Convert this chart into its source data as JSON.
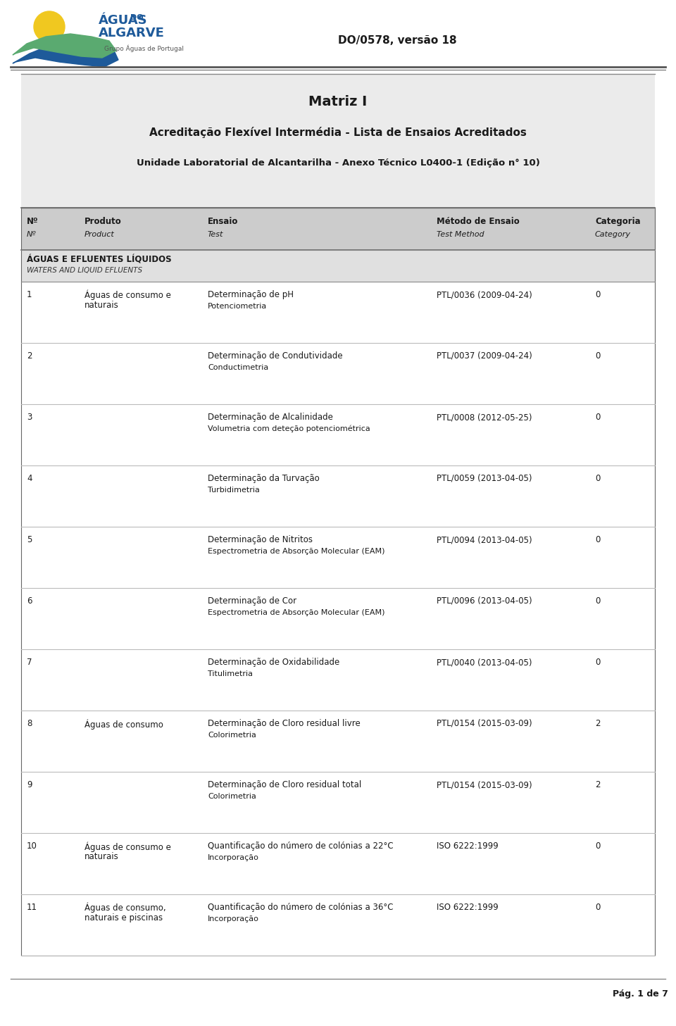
{
  "page_title": "DO/0578, versão 18",
  "doc_title1": "Matriz I",
  "doc_title2": "Acreditação Flexível Intermédia - Lista de Ensaios Acreditados",
  "doc_title3": "Unidade Laboratorial de Alcantarilha - Anexo Técnico L0400-1 (Edição n° 10)",
  "col_headers_bold": [
    "Nº",
    "Produto",
    "Ensaio",
    "Método de Ensaio",
    "Categoria"
  ],
  "col_headers_italic": [
    "Nº",
    "Product",
    "Test",
    "Test Method",
    "Category"
  ],
  "section_header_bold": "ÁGUAS E EFLUENTES LÍQUIDOS",
  "section_header_italic": "WATERS AND LIQUID EFLUENTS",
  "rows": [
    {
      "num": "1",
      "product": "Águas de consumo e\nnaturais",
      "test_line1": "Determinação de pH",
      "test_line2": "Potenciometria",
      "method": "PTL/0036 (2009-04-24)",
      "category": "0"
    },
    {
      "num": "2",
      "product": "",
      "test_line1": "Determinação de Condutividade",
      "test_line2": "Conductimetria",
      "method": "PTL/0037 (2009-04-24)",
      "category": "0"
    },
    {
      "num": "3",
      "product": "",
      "test_line1": "Determinação de Alcalinidade",
      "test_line2": "Volumetria com deteção potenciométrica",
      "method": "PTL/0008 (2012-05-25)",
      "category": "0"
    },
    {
      "num": "4",
      "product": "",
      "test_line1": "Determinação da Turvação",
      "test_line2": "Turbidimetria",
      "method": "PTL/0059 (2013-04-05)",
      "category": "0"
    },
    {
      "num": "5",
      "product": "",
      "test_line1": "Determinação de Nitritos",
      "test_line2": "Espectrometria de Absorção Molecular (EAM)",
      "method": "PTL/0094 (2013-04-05)",
      "category": "0"
    },
    {
      "num": "6",
      "product": "",
      "test_line1": "Determinação de Cor",
      "test_line2": "Espectrometria de Absorção Molecular (EAM)",
      "method": "PTL/0096 (2013-04-05)",
      "category": "0"
    },
    {
      "num": "7",
      "product": "",
      "test_line1": "Determinação de Oxidabilidade",
      "test_line2": "Titulimetria",
      "method": "PTL/0040 (2013-04-05)",
      "category": "0"
    },
    {
      "num": "8",
      "product": "Águas de consumo",
      "test_line1": "Determinação de Cloro residual livre",
      "test_line2": "Colorimetria",
      "method": "PTL/0154 (2015-03-09)",
      "category": "2"
    },
    {
      "num": "9",
      "product": "",
      "test_line1": "Determinação de Cloro residual total",
      "test_line2": "Colorimetria",
      "method": "PTL/0154 (2015-03-09)",
      "category": "2"
    },
    {
      "num": "10",
      "product": "Águas de consumo e\nnaturais",
      "test_line1": "Quantificação do número de colónias a 22°C",
      "test_line2": "Incorporação",
      "method": "ISO 6222:1999",
      "category": "0"
    },
    {
      "num": "11",
      "product": "Águas de consumo,\nnaturais e piscinas",
      "test_line1": "Quantificação do número de colónias a 36°C",
      "test_line2": "Incorporação",
      "method": "ISO 6222:1999",
      "category": "0"
    }
  ],
  "footer_text": "Pág. 1 de 7",
  "bg_color": "#ffffff",
  "header_bg": "#cccccc",
  "section_bg": "#e0e0e0",
  "line_color_dark": "#777777",
  "line_color_light": "#bbbbbb",
  "text_color": "#1a1a1a"
}
